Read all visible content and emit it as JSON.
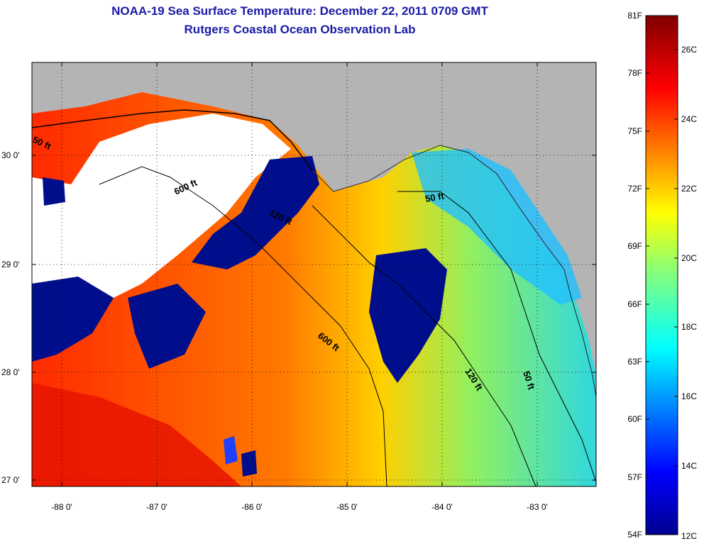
{
  "title_line1": "NOAA-19 Sea Surface Temperature:  December 22, 2011 0709 GMT",
  "title_line2": "Rutgers Coastal Ocean Observation Lab",
  "map": {
    "lon_ticks": [
      "-88 0'",
      "-87 0'",
      "-86 0'",
      "-85 0'",
      "-84 0'",
      "-83 0'"
    ],
    "lat_ticks": [
      "30 0'",
      "29 0'",
      "28 0'",
      "27 0'"
    ],
    "contour_labels": [
      "50 ft",
      "600 ft",
      "120 ft",
      "50 ft",
      "600 ft",
      "120 ft",
      "50 ft"
    ],
    "colors": {
      "land": "#b4b4b4",
      "cloud": "#ffffff",
      "cold": "#000e8c"
    }
  },
  "colorbar": {
    "fahrenheit_labels": [
      "81F",
      "78F",
      "75F",
      "72F",
      "69F",
      "66F",
      "63F",
      "60F",
      "57F",
      "54F"
    ],
    "celsius_labels": [
      "26C",
      "24C",
      "22C",
      "20C",
      "18C",
      "16C",
      "14C",
      "12C"
    ],
    "range_c": [
      12,
      27
    ]
  }
}
